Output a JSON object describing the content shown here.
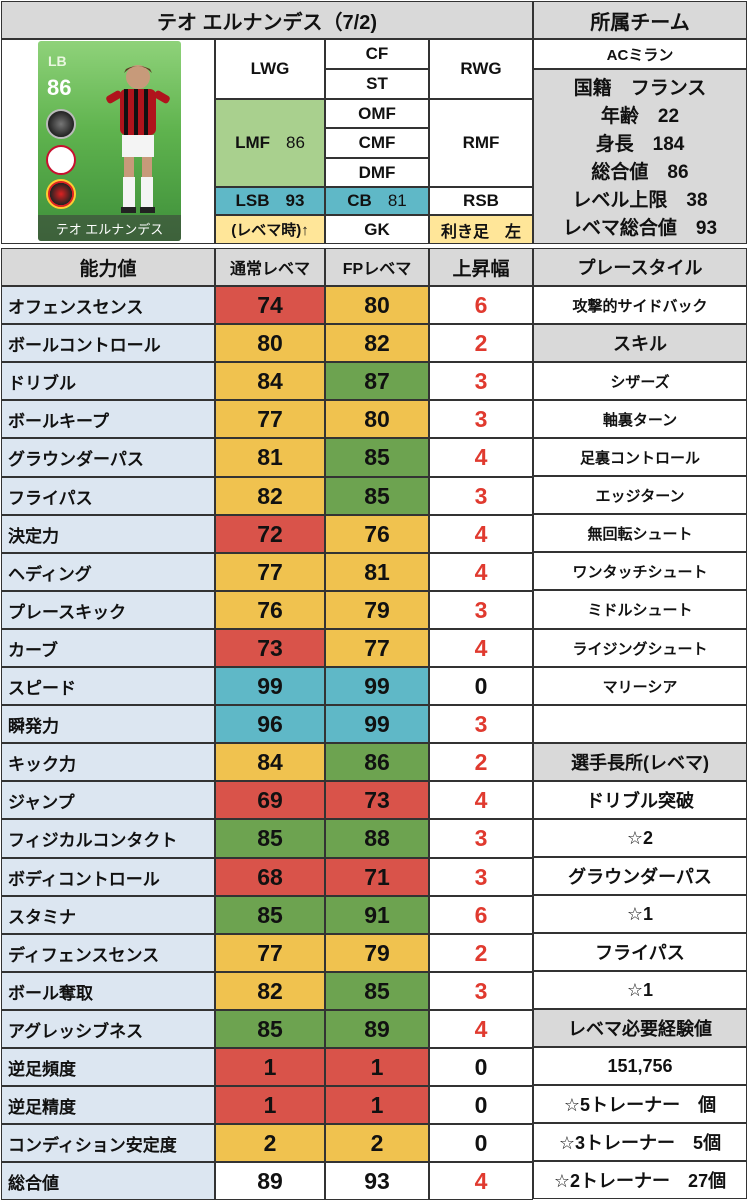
{
  "header": {
    "player_title": "テオ エルナンデス（7/2)",
    "team_header": "所属チーム"
  },
  "card": {
    "position": "LB",
    "rating": "86",
    "name": "テオ エルナンデス"
  },
  "positions": {
    "lwg": "LWG",
    "cf": "CF",
    "st": "ST",
    "rwg": "RWG",
    "lmf": "LMF",
    "lmf_val": "86",
    "omf": "OMF",
    "cmf": "CMF",
    "dmf": "DMF",
    "rmf": "RMF",
    "lsb": "LSB",
    "lsb_val": "93",
    "cb": "CB",
    "cb_val": "81",
    "rsb": "RSB",
    "levema_note": "(レベマ時)↑",
    "gk": "GK",
    "foot": "利き足　左"
  },
  "info": {
    "team": "ACミラン",
    "nationality": "国籍　フランス",
    "age": "年齢　22",
    "height": "身長　184",
    "overall": "総合値　86",
    "level_cap": "レベル上限　38",
    "levema_overall": "レベマ総合値　93"
  },
  "table_headers": {
    "ability": "能力値",
    "normal": "通常レベマ",
    "fp": "FPレベマ",
    "increase": "上昇幅"
  },
  "stats": [
    {
      "label": "オフェンスセンス",
      "normal": "74",
      "fp": "80",
      "inc": "6",
      "nc": "red",
      "fc": "yellow"
    },
    {
      "label": "ボールコントロール",
      "normal": "80",
      "fp": "82",
      "inc": "2",
      "nc": "yellow",
      "fc": "yellow"
    },
    {
      "label": "ドリブル",
      "normal": "84",
      "fp": "87",
      "inc": "3",
      "nc": "yellow",
      "fc": "green"
    },
    {
      "label": "ボールキープ",
      "normal": "77",
      "fp": "80",
      "inc": "3",
      "nc": "yellow",
      "fc": "yellow"
    },
    {
      "label": "グラウンダーパス",
      "normal": "81",
      "fp": "85",
      "inc": "4",
      "nc": "yellow",
      "fc": "green"
    },
    {
      "label": "フライパス",
      "normal": "82",
      "fp": "85",
      "inc": "3",
      "nc": "yellow",
      "fc": "green"
    },
    {
      "label": "決定力",
      "normal": "72",
      "fp": "76",
      "inc": "4",
      "nc": "red",
      "fc": "yellow"
    },
    {
      "label": "ヘディング",
      "normal": "77",
      "fp": "81",
      "inc": "4",
      "nc": "yellow",
      "fc": "yellow"
    },
    {
      "label": "プレースキック",
      "normal": "76",
      "fp": "79",
      "inc": "3",
      "nc": "yellow",
      "fc": "yellow"
    },
    {
      "label": "カーブ",
      "normal": "73",
      "fp": "77",
      "inc": "4",
      "nc": "red",
      "fc": "yellow"
    },
    {
      "label": "スピード",
      "normal": "99",
      "fp": "99",
      "inc": "0",
      "nc": "teal",
      "fc": "teal"
    },
    {
      "label": "瞬発力",
      "normal": "96",
      "fp": "99",
      "inc": "3",
      "nc": "teal",
      "fc": "teal"
    },
    {
      "label": "キック力",
      "normal": "84",
      "fp": "86",
      "inc": "2",
      "nc": "yellow",
      "fc": "green"
    },
    {
      "label": "ジャンプ",
      "normal": "69",
      "fp": "73",
      "inc": "4",
      "nc": "red",
      "fc": "red"
    },
    {
      "label": "フィジカルコンタクト",
      "normal": "85",
      "fp": "88",
      "inc": "3",
      "nc": "green",
      "fc": "green"
    },
    {
      "label": "ボディコントロール",
      "normal": "68",
      "fp": "71",
      "inc": "3",
      "nc": "red",
      "fc": "red"
    },
    {
      "label": "スタミナ",
      "normal": "85",
      "fp": "91",
      "inc": "6",
      "nc": "green",
      "fc": "green"
    },
    {
      "label": "ディフェンスセンス",
      "normal": "77",
      "fp": "79",
      "inc": "2",
      "nc": "yellow",
      "fc": "yellow"
    },
    {
      "label": "ボール奪取",
      "normal": "82",
      "fp": "85",
      "inc": "3",
      "nc": "yellow",
      "fc": "green"
    },
    {
      "label": "アグレッシブネス",
      "normal": "85",
      "fp": "89",
      "inc": "4",
      "nc": "green",
      "fc": "green"
    },
    {
      "label": "逆足頻度",
      "normal": "1",
      "fp": "1",
      "inc": "0",
      "nc": "red",
      "fc": "red"
    },
    {
      "label": "逆足精度",
      "normal": "1",
      "fp": "1",
      "inc": "0",
      "nc": "red",
      "fc": "red"
    },
    {
      "label": "コンディション安定度",
      "normal": "2",
      "fp": "2",
      "inc": "0",
      "nc": "yellow",
      "fc": "yellow"
    },
    {
      "label": "総合値",
      "normal": "89",
      "fp": "93",
      "inc": "4",
      "nc": "white",
      "fc": "white"
    }
  ],
  "right_col": [
    {
      "text": "プレースタイル",
      "kind": "header"
    },
    {
      "text": "攻撃的サイドバック",
      "kind": "small"
    },
    {
      "text": "スキル",
      "kind": "header"
    },
    {
      "text": "シザーズ",
      "kind": "small"
    },
    {
      "text": "軸裏ターン",
      "kind": "small"
    },
    {
      "text": "足裏コントロール",
      "kind": "small"
    },
    {
      "text": "エッジターン",
      "kind": "small"
    },
    {
      "text": "無回転シュート",
      "kind": "small"
    },
    {
      "text": "ワンタッチシュート",
      "kind": "small"
    },
    {
      "text": "ミドルシュート",
      "kind": "small"
    },
    {
      "text": "ライジングシュート",
      "kind": "small"
    },
    {
      "text": "マリーシア",
      "kind": "small"
    },
    {
      "text": "",
      "kind": "small"
    },
    {
      "text": "選手長所(レベマ)",
      "kind": "header"
    },
    {
      "text": "ドリブル突破",
      "kind": "large"
    },
    {
      "text": "☆2",
      "kind": "large"
    },
    {
      "text": "グラウンダーパス",
      "kind": "large"
    },
    {
      "text": "☆1",
      "kind": "large"
    },
    {
      "text": "フライパス",
      "kind": "large"
    },
    {
      "text": "☆1",
      "kind": "large"
    },
    {
      "text": "レベマ必要経験値",
      "kind": "header"
    },
    {
      "text": "151,756",
      "kind": "large"
    },
    {
      "text": "☆5トレーナー　個",
      "kind": "large"
    },
    {
      "text": "☆3トレーナー　5個",
      "kind": "large"
    },
    {
      "text": "☆2トレーナー　27個",
      "kind": "large"
    }
  ],
  "colors": {
    "red": "#d9534a",
    "yellow": "#f0c24f",
    "green": "#6da350",
    "teal": "#5fb8c7",
    "header_grey": "#d9d9d9",
    "label_blue": "#dce6f1"
  }
}
